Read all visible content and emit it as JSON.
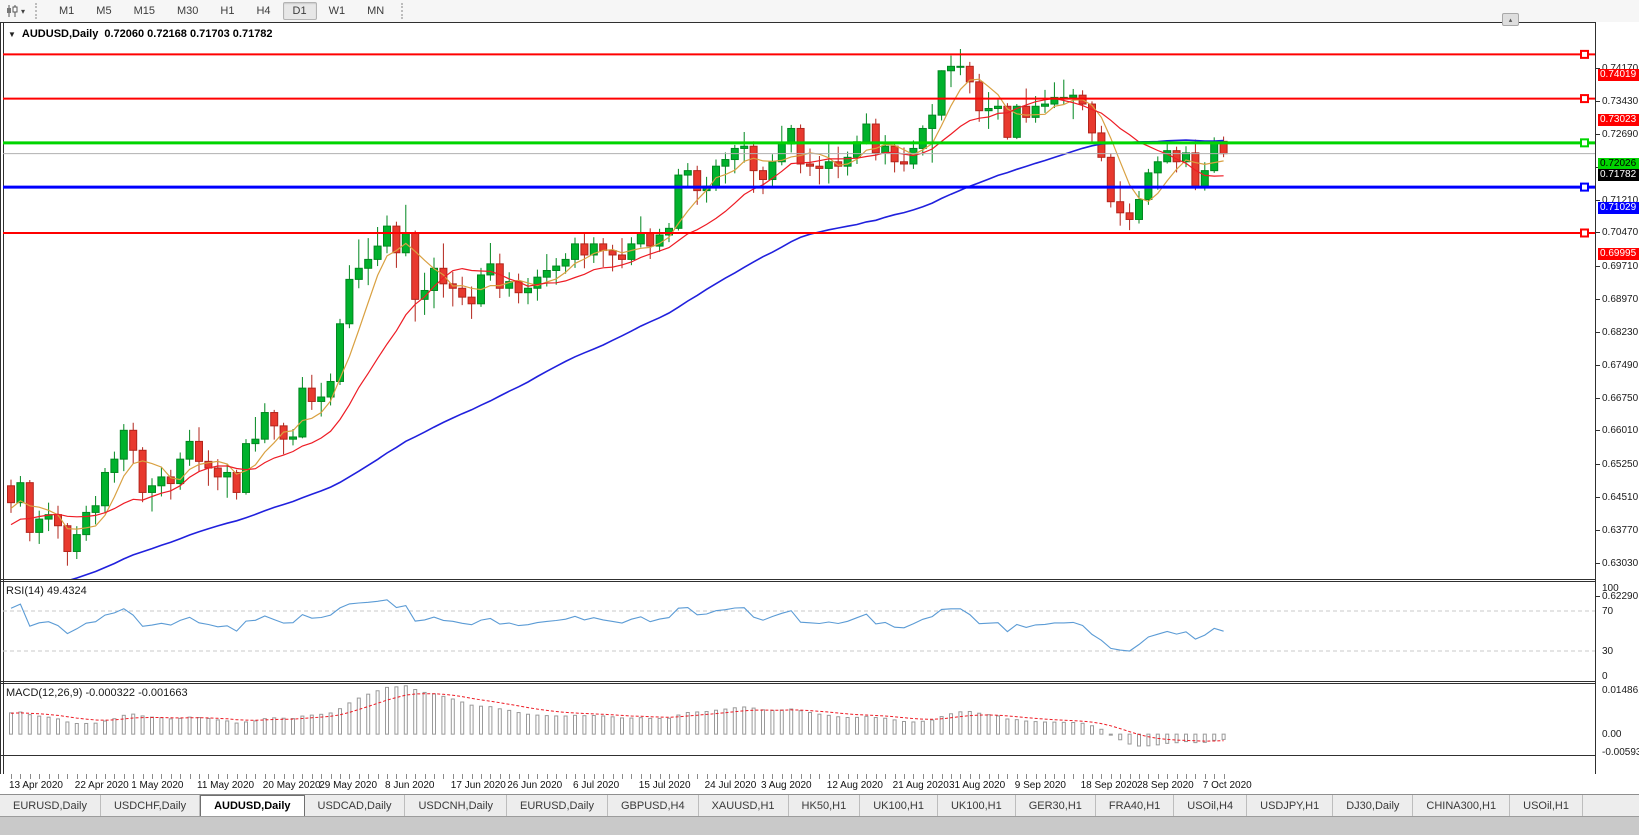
{
  "toolbar": {
    "timeframes": [
      {
        "label": "M1",
        "active": false
      },
      {
        "label": "M5",
        "active": false
      },
      {
        "label": "M15",
        "active": false
      },
      {
        "label": "M30",
        "active": false
      },
      {
        "label": "H1",
        "active": false
      },
      {
        "label": "H4",
        "active": false
      },
      {
        "label": "D1",
        "active": true
      },
      {
        "label": "W1",
        "active": false
      },
      {
        "label": "MN",
        "active": false
      }
    ],
    "icons": {
      "dropdown_caret": "▾",
      "scroll_top": "▴",
      "title_collapse": "▼"
    }
  },
  "chart": {
    "title_symbol": "AUDUSD,Daily",
    "title_ohlc": "0.72060 0.72168 0.71703 0.71782"
  },
  "chart_data": {
    "type": "candlestick",
    "symbol": "AUDUSD",
    "timeframe": "Daily",
    "ohlc_line": {
      "open": 0.7206,
      "high": 0.72168,
      "low": 0.71703,
      "close": 0.71782
    },
    "up_color": "#00b22d",
    "up_border": "#00871f",
    "down_color": "#e8392e",
    "down_border": "#b2241b",
    "price_range": [
      0.622,
      0.74726
    ],
    "y_ticks": [
      "0.74170",
      "0.73430",
      "0.72690",
      "0.71950",
      "0.71210",
      "0.70470",
      "0.69710",
      "0.68970",
      "0.68230",
      "0.67490",
      "0.66750",
      "0.66010",
      "0.65250",
      "0.64510",
      "0.63770",
      "0.63030",
      "0.62290"
    ],
    "x_labels": [
      "13 Apr 2020",
      "22 Apr 2020",
      "1 May 2020",
      "11 May 2020",
      "20 May 2020",
      "29 May 2020",
      "8 Jun 2020",
      "17 Jun 2020",
      "26 Jun 2020",
      "6 Jul 2020",
      "15 Jul 2020",
      "24 Jul 2020",
      "3 Aug 2020",
      "12 Aug 2020",
      "21 Aug 2020",
      "31 Aug 2020",
      "9 Sep 2020",
      "18 Sep 2020",
      "28 Sep 2020",
      "7 Oct 2020"
    ],
    "levels": [
      {
        "value": 0.74019,
        "label": "0.74019",
        "color": "#ff0000",
        "text_color": "#ffffff",
        "line_width": 2
      },
      {
        "value": 0.73023,
        "label": "0.73023",
        "color": "#ff0000",
        "text_color": "#ffffff",
        "line_width": 2
      },
      {
        "value": 0.72026,
        "label": "0.72026",
        "color": "#00d500",
        "text_color": "#000000",
        "line_width": 3
      },
      {
        "value": 0.71029,
        "label": "0.71029",
        "color": "#0000ff",
        "text_color": "#ffffff",
        "line_width": 3
      },
      {
        "value": 0.69995,
        "label": "0.69995",
        "color": "#ff0000",
        "text_color": "#ffffff",
        "line_width": 2
      }
    ],
    "current_price": {
      "value": 0.71782,
      "label": "0.71782",
      "line_color": "#b0b0b0",
      "bg": "#000000",
      "text_color": "#ffffff"
    },
    "moving_averages": [
      {
        "name": "fast",
        "period": 5,
        "method": "sma",
        "color": "#d9a142"
      },
      {
        "name": "medium",
        "period": 13,
        "method": "sma",
        "color": "#ee1c25"
      },
      {
        "name": "slow",
        "period": 50,
        "method": "sma",
        "color": "#2020dd"
      }
    ],
    "rsi": {
      "label": "RSI(14) 49.4324",
      "period": 14,
      "current": 49.4324,
      "scale_labels": [
        "100",
        "70",
        "30",
        "0"
      ],
      "scale_values": [
        100,
        70,
        30,
        0
      ],
      "guide_levels": [
        70,
        30
      ],
      "line_color": "#5b9bd5"
    },
    "macd": {
      "label": "MACD(12,26,9) -0.000322 -0.001663",
      "fast": 12,
      "slow": 26,
      "signal": 9,
      "macd_value": -0.000322,
      "signal_value": -0.001663,
      "scale_labels": [
        "0.014861",
        "0.00",
        "-0.005938"
      ],
      "scale_max": 0.014861,
      "scale_min": -0.005938,
      "bar_color": "#9a9a9a",
      "signal_color": "#ee1c25"
    },
    "candles": [
      [
        0.643,
        0.6444,
        0.6369,
        0.6392
      ],
      [
        0.6392,
        0.6452,
        0.6383,
        0.6437
      ],
      [
        0.6437,
        0.6443,
        0.6305,
        0.6325
      ],
      [
        0.6325,
        0.6374,
        0.6299,
        0.6355
      ],
      [
        0.6355,
        0.6392,
        0.6328,
        0.6365
      ],
      [
        0.6365,
        0.6385,
        0.6311,
        0.634
      ],
      [
        0.634,
        0.6346,
        0.625,
        0.6282
      ],
      [
        0.6282,
        0.6339,
        0.6265,
        0.632
      ],
      [
        0.632,
        0.6385,
        0.6306,
        0.637
      ],
      [
        0.637,
        0.6407,
        0.6343,
        0.6385
      ],
      [
        0.6385,
        0.647,
        0.6368,
        0.646
      ],
      [
        0.646,
        0.6507,
        0.6437,
        0.649
      ],
      [
        0.649,
        0.6569,
        0.6463,
        0.6555
      ],
      [
        0.6555,
        0.6572,
        0.648,
        0.651
      ],
      [
        0.651,
        0.6517,
        0.6393,
        0.6415
      ],
      [
        0.6415,
        0.6447,
        0.6372,
        0.643
      ],
      [
        0.643,
        0.6473,
        0.6406,
        0.645
      ],
      [
        0.645,
        0.6466,
        0.6399,
        0.6435
      ],
      [
        0.6435,
        0.6505,
        0.6421,
        0.649
      ],
      [
        0.649,
        0.6556,
        0.6475,
        0.653
      ],
      [
        0.653,
        0.6562,
        0.6462,
        0.6485
      ],
      [
        0.6485,
        0.651,
        0.643,
        0.647
      ],
      [
        0.647,
        0.649,
        0.642,
        0.645
      ],
      [
        0.645,
        0.648,
        0.6403,
        0.646
      ],
      [
        0.646,
        0.6466,
        0.6399,
        0.6415
      ],
      [
        0.6415,
        0.6535,
        0.641,
        0.6525
      ],
      [
        0.6525,
        0.6585,
        0.6507,
        0.6535
      ],
      [
        0.6535,
        0.6616,
        0.6526,
        0.6595
      ],
      [
        0.6595,
        0.6601,
        0.6534,
        0.6565
      ],
      [
        0.6565,
        0.6572,
        0.6501,
        0.6535
      ],
      [
        0.6535,
        0.6558,
        0.6521,
        0.654
      ],
      [
        0.654,
        0.6675,
        0.6537,
        0.665
      ],
      [
        0.665,
        0.668,
        0.6601,
        0.662
      ],
      [
        0.662,
        0.6662,
        0.6586,
        0.663
      ],
      [
        0.663,
        0.6683,
        0.6611,
        0.6665
      ],
      [
        0.6665,
        0.6806,
        0.6657,
        0.6795
      ],
      [
        0.6795,
        0.6927,
        0.6785,
        0.6895
      ],
      [
        0.6895,
        0.6985,
        0.6875,
        0.692
      ],
      [
        0.692,
        0.6988,
        0.6882,
        0.694
      ],
      [
        0.694,
        0.7013,
        0.6925,
        0.697
      ],
      [
        0.697,
        0.7039,
        0.6954,
        0.7015
      ],
      [
        0.7015,
        0.7025,
        0.6921,
        0.6955
      ],
      [
        0.6955,
        0.7063,
        0.6947,
        0.7
      ],
      [
        0.7,
        0.7005,
        0.68,
        0.685
      ],
      [
        0.685,
        0.691,
        0.6815,
        0.687
      ],
      [
        0.687,
        0.6944,
        0.683,
        0.692
      ],
      [
        0.692,
        0.6976,
        0.6854,
        0.6885
      ],
      [
        0.6885,
        0.6912,
        0.6834,
        0.6875
      ],
      [
        0.6875,
        0.6901,
        0.6837,
        0.6855
      ],
      [
        0.6855,
        0.6879,
        0.6806,
        0.684
      ],
      [
        0.684,
        0.6921,
        0.6833,
        0.6905
      ],
      [
        0.6905,
        0.6977,
        0.6892,
        0.693
      ],
      [
        0.693,
        0.6953,
        0.6853,
        0.6875
      ],
      [
        0.6875,
        0.6911,
        0.6856,
        0.689
      ],
      [
        0.689,
        0.6908,
        0.6841,
        0.6865
      ],
      [
        0.6865,
        0.6898,
        0.6839,
        0.6875
      ],
      [
        0.6875,
        0.6917,
        0.6847,
        0.69
      ],
      [
        0.69,
        0.6952,
        0.6879,
        0.6915
      ],
      [
        0.6915,
        0.6943,
        0.6883,
        0.6925
      ],
      [
        0.6925,
        0.6954,
        0.6908,
        0.694
      ],
      [
        0.694,
        0.6989,
        0.6921,
        0.6975
      ],
      [
        0.6975,
        0.6998,
        0.692,
        0.695
      ],
      [
        0.695,
        0.699,
        0.6932,
        0.6975
      ],
      [
        0.6975,
        0.6988,
        0.6923,
        0.696
      ],
      [
        0.696,
        0.6973,
        0.6913,
        0.695
      ],
      [
        0.695,
        0.6988,
        0.692,
        0.694
      ],
      [
        0.694,
        0.699,
        0.6927,
        0.6975
      ],
      [
        0.6975,
        0.7037,
        0.6967,
        0.7
      ],
      [
        0.7,
        0.701,
        0.6941,
        0.697
      ],
      [
        0.697,
        0.7009,
        0.6957,
        0.6995
      ],
      [
        0.6995,
        0.7022,
        0.6979,
        0.701
      ],
      [
        0.701,
        0.7144,
        0.7005,
        0.713
      ],
      [
        0.713,
        0.7157,
        0.7101,
        0.714
      ],
      [
        0.714,
        0.7151,
        0.7063,
        0.7095
      ],
      [
        0.7095,
        0.7126,
        0.7068,
        0.7105
      ],
      [
        0.7105,
        0.7165,
        0.7094,
        0.715
      ],
      [
        0.715,
        0.7181,
        0.7111,
        0.7165
      ],
      [
        0.7165,
        0.7198,
        0.7134,
        0.719
      ],
      [
        0.719,
        0.7227,
        0.7158,
        0.7195
      ],
      [
        0.7195,
        0.7206,
        0.709,
        0.714
      ],
      [
        0.714,
        0.7149,
        0.7087,
        0.712
      ],
      [
        0.712,
        0.7177,
        0.7101,
        0.716
      ],
      [
        0.716,
        0.7241,
        0.7152,
        0.72
      ],
      [
        0.72,
        0.7243,
        0.7181,
        0.7235
      ],
      [
        0.7235,
        0.7244,
        0.7134,
        0.7155
      ],
      [
        0.7155,
        0.719,
        0.7128,
        0.715
      ],
      [
        0.715,
        0.7173,
        0.7109,
        0.7145
      ],
      [
        0.7145,
        0.7202,
        0.7111,
        0.716
      ],
      [
        0.716,
        0.7194,
        0.7123,
        0.715
      ],
      [
        0.715,
        0.7183,
        0.7129,
        0.717
      ],
      [
        0.717,
        0.7219,
        0.7155,
        0.7205
      ],
      [
        0.7205,
        0.7269,
        0.7199,
        0.7245
      ],
      [
        0.7245,
        0.7257,
        0.7163,
        0.718
      ],
      [
        0.718,
        0.722,
        0.7154,
        0.7195
      ],
      [
        0.7195,
        0.7203,
        0.7136,
        0.716
      ],
      [
        0.716,
        0.7192,
        0.7138,
        0.7155
      ],
      [
        0.7155,
        0.7208,
        0.7144,
        0.719
      ],
      [
        0.719,
        0.7242,
        0.7174,
        0.7235
      ],
      [
        0.7235,
        0.729,
        0.7158,
        0.7265
      ],
      [
        0.7265,
        0.7366,
        0.7253,
        0.7365
      ],
      [
        0.7365,
        0.7399,
        0.7328,
        0.7375
      ],
      [
        0.7375,
        0.7414,
        0.7355,
        0.7375
      ],
      [
        0.7375,
        0.7385,
        0.7314,
        0.734
      ],
      [
        0.734,
        0.7358,
        0.725,
        0.7275
      ],
      [
        0.7275,
        0.7317,
        0.7234,
        0.728
      ],
      [
        0.728,
        0.73,
        0.7255,
        0.7285
      ],
      [
        0.7285,
        0.7292,
        0.721,
        0.7215
      ],
      [
        0.7215,
        0.729,
        0.7211,
        0.7285
      ],
      [
        0.7285,
        0.7325,
        0.7248,
        0.726
      ],
      [
        0.726,
        0.7308,
        0.7248,
        0.7285
      ],
      [
        0.7285,
        0.7322,
        0.727,
        0.729
      ],
      [
        0.729,
        0.7339,
        0.7281,
        0.7305
      ],
      [
        0.7305,
        0.7345,
        0.7288,
        0.7305
      ],
      [
        0.7305,
        0.7324,
        0.7256,
        0.731
      ],
      [
        0.731,
        0.7321,
        0.7276,
        0.729
      ],
      [
        0.729,
        0.7296,
        0.72,
        0.7225
      ],
      [
        0.7225,
        0.7241,
        0.7161,
        0.717
      ],
      [
        0.717,
        0.7179,
        0.7057,
        0.707
      ],
      [
        0.707,
        0.7116,
        0.7016,
        0.7045
      ],
      [
        0.7045,
        0.7066,
        0.7006,
        0.703
      ],
      [
        0.703,
        0.7094,
        0.7021,
        0.7075
      ],
      [
        0.7075,
        0.7144,
        0.7063,
        0.7135
      ],
      [
        0.7135,
        0.7172,
        0.7097,
        0.716
      ],
      [
        0.716,
        0.7209,
        0.7156,
        0.7185
      ],
      [
        0.7185,
        0.7194,
        0.7136,
        0.716
      ],
      [
        0.716,
        0.7195,
        0.7148,
        0.718
      ],
      [
        0.718,
        0.721,
        0.7096,
        0.7105
      ],
      [
        0.7105,
        0.7159,
        0.7095,
        0.714
      ],
      [
        0.714,
        0.7215,
        0.7135,
        0.7206
      ],
      [
        0.7206,
        0.72168,
        0.71703,
        0.71782
      ]
    ]
  },
  "tabs": [
    {
      "label": "EURUSD,Daily",
      "active": false
    },
    {
      "label": "USDCHF,Daily",
      "active": false
    },
    {
      "label": "AUDUSD,Daily",
      "active": true
    },
    {
      "label": "USDCAD,Daily",
      "active": false
    },
    {
      "label": "USDCNH,Daily",
      "active": false
    },
    {
      "label": "EURUSD,Daily",
      "active": false
    },
    {
      "label": "GBPUSD,H4",
      "active": false
    },
    {
      "label": "XAUUSD,H1",
      "active": false
    },
    {
      "label": "HK50,H1",
      "active": false
    },
    {
      "label": "UK100,H1",
      "active": false
    },
    {
      "label": "UK100,H1",
      "active": false
    },
    {
      "label": "GER30,H1",
      "active": false
    },
    {
      "label": "FRA40,H1",
      "active": false
    },
    {
      "label": "USOil,H4",
      "active": false
    },
    {
      "label": "USDJPY,H1",
      "active": false
    },
    {
      "label": "DJ30,Daily",
      "active": false
    },
    {
      "label": "CHINA300,H1",
      "active": false
    },
    {
      "label": "USOil,H1",
      "active": false
    }
  ]
}
